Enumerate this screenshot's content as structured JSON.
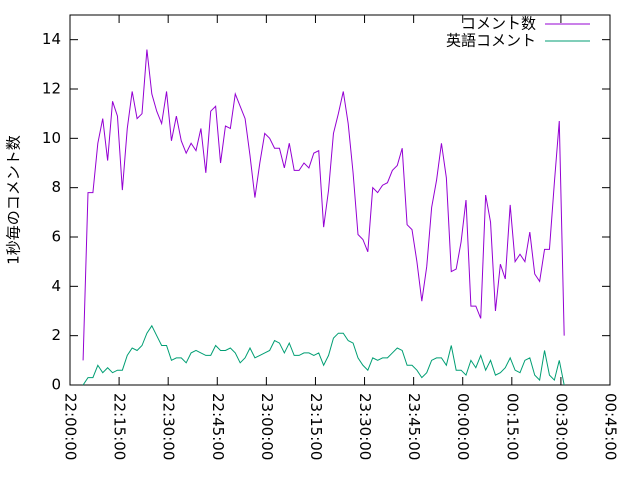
{
  "chart_data": {
    "type": "line",
    "y_label": "1秒毎のコメント数",
    "x": [
      79440,
      79530,
      79620,
      79710,
      79800,
      79890,
      79980,
      80070,
      80160,
      80250,
      80340,
      80430,
      80520,
      80610,
      80700,
      80790,
      80880,
      80970,
      81060,
      81150,
      81240,
      81330,
      81420,
      81510,
      81600,
      81690,
      81780,
      81870,
      81960,
      82050,
      82140,
      82230,
      82320,
      82410,
      82500,
      82590,
      82680,
      82770,
      82860,
      82950,
      83040,
      83130,
      83220,
      83310,
      83400,
      83490,
      83580,
      83670,
      83760,
      83850,
      83940,
      84030,
      84120,
      84210,
      84300,
      84390,
      84480,
      84570,
      84660,
      84750,
      84840,
      84930,
      85020,
      85110,
      85200,
      85290,
      85380,
      85470,
      85560,
      85650,
      85740,
      85830,
      85920,
      86010,
      86100,
      86190,
      86280,
      86370,
      86460,
      86550,
      86640,
      86730,
      86820,
      86910,
      87000,
      87090,
      87180,
      87270,
      87360,
      87450,
      87540,
      87630,
      87720,
      87810,
      87900,
      87990,
      88080,
      88170,
      88260
    ],
    "series": [
      {
        "name": "コメント数",
        "color": "#9400d3",
        "values": [
          1.0,
          7.8,
          7.8,
          9.8,
          10.8,
          9.1,
          11.5,
          10.9,
          7.9,
          10.4,
          11.9,
          10.8,
          11.0,
          13.6,
          11.8,
          11.1,
          10.6,
          11.9,
          9.9,
          10.9,
          9.9,
          9.4,
          9.8,
          9.5,
          10.4,
          8.6,
          11.1,
          11.3,
          9.0,
          10.5,
          10.4,
          11.8,
          11.3,
          10.8,
          9.3,
          7.6,
          9.0,
          10.2,
          10.0,
          9.6,
          9.6,
          8.8,
          9.8,
          8.7,
          8.7,
          9.0,
          8.8,
          9.4,
          9.5,
          6.4,
          7.9,
          10.2,
          11.0,
          11.9,
          10.6,
          8.6,
          6.1,
          5.9,
          5.4,
          8.0,
          7.8,
          8.1,
          8.2,
          8.7,
          8.9,
          9.6,
          6.5,
          6.3,
          5.0,
          3.4,
          4.8,
          7.2,
          8.3,
          9.8,
          8.4,
          4.6,
          4.7,
          5.8,
          7.5,
          3.2,
          3.2,
          2.7,
          7.7,
          6.6,
          3.0,
          4.9,
          4.3,
          7.3,
          5.0,
          5.3,
          5.0,
          6.2,
          4.5,
          4.2,
          5.5,
          5.5,
          8.2,
          10.7,
          2.0
        ]
      },
      {
        "name": "英語コメント",
        "color": "#009e73",
        "values": [
          0.0,
          0.3,
          0.3,
          0.8,
          0.5,
          0.7,
          0.5,
          0.6,
          0.6,
          1.2,
          1.5,
          1.4,
          1.6,
          2.1,
          2.4,
          2.0,
          1.6,
          1.6,
          1.0,
          1.1,
          1.1,
          0.9,
          1.3,
          1.4,
          1.3,
          1.2,
          1.2,
          1.6,
          1.4,
          1.4,
          1.5,
          1.3,
          0.9,
          1.1,
          1.5,
          1.1,
          1.2,
          1.3,
          1.4,
          1.8,
          1.7,
          1.3,
          1.7,
          1.2,
          1.2,
          1.3,
          1.3,
          1.2,
          1.3,
          0.8,
          1.2,
          1.9,
          2.1,
          2.1,
          1.8,
          1.7,
          1.1,
          0.8,
          0.6,
          1.1,
          1.0,
          1.1,
          1.1,
          1.3,
          1.5,
          1.4,
          0.8,
          0.8,
          0.6,
          0.3,
          0.5,
          1.0,
          1.1,
          1.1,
          0.8,
          1.6,
          0.6,
          0.6,
          0.4,
          1.0,
          0.7,
          1.2,
          0.6,
          1.0,
          0.4,
          0.5,
          0.7,
          1.1,
          0.6,
          0.5,
          1.0,
          1.1,
          0.4,
          0.2,
          1.4,
          0.4,
          0.2,
          1.0,
          0.0
        ]
      }
    ],
    "xlim": [
      79200,
      89100
    ],
    "xticks": [
      {
        "value": 79200,
        "label": "22:00:00"
      },
      {
        "value": 80100,
        "label": "22:15:00"
      },
      {
        "value": 81000,
        "label": "22:30:00"
      },
      {
        "value": 81900,
        "label": "22:45:00"
      },
      {
        "value": 82800,
        "label": "23:00:00"
      },
      {
        "value": 83700,
        "label": "23:15:00"
      },
      {
        "value": 84600,
        "label": "23:30:00"
      },
      {
        "value": 85500,
        "label": "23:45:00"
      },
      {
        "value": 86400,
        "label": "00:00:00"
      },
      {
        "value": 87300,
        "label": "00:15:00"
      },
      {
        "value": 88200,
        "label": "00:30:00"
      },
      {
        "value": 89100,
        "label": "00:45:00"
      }
    ],
    "ylim": [
      0,
      15
    ],
    "yticks": [
      0,
      2,
      4,
      6,
      8,
      10,
      12,
      14
    ],
    "legend": "top-right"
  }
}
